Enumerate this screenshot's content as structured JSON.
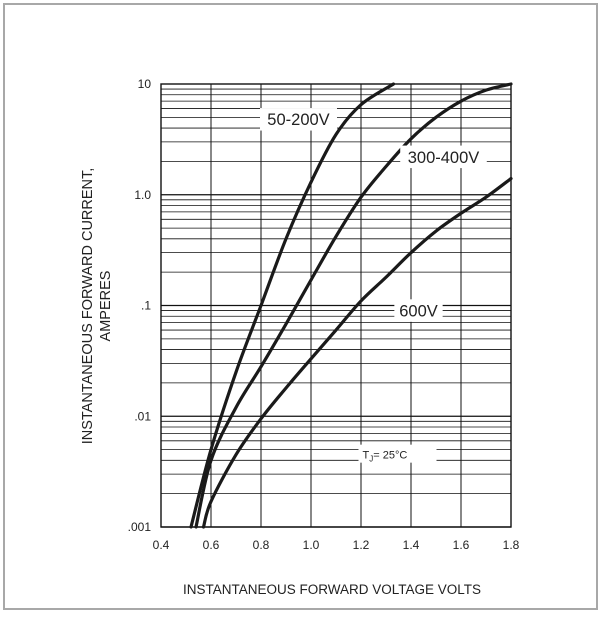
{
  "chart_data": {
    "type": "line",
    "xlabel": "INSTANTANEOUS FORWARD VOLTAGE VOLTS",
    "ylabel_line1": "INSTANTANEOUS FORWARD CURRENT,",
    "ylabel_line2": "AMPERES",
    "x_scale": "linear",
    "y_scale": "log",
    "xlim": [
      0.4,
      1.8
    ],
    "ylim": [
      0.001,
      10
    ],
    "x_ticks": [
      "0.4",
      "0.6",
      "0.8",
      "1.0",
      "1.2",
      "1.4",
      "1.6",
      "1.8"
    ],
    "y_ticks": [
      {
        "value": 0.001,
        "label": ".001"
      },
      {
        "value": 0.01,
        "label": ".01"
      },
      {
        "value": 0.1,
        "label": ".1"
      },
      {
        "value": 1,
        "label": "1.0"
      },
      {
        "value": 10,
        "label": "10"
      }
    ],
    "grid": true,
    "annotation": {
      "text_main": "T",
      "text_sub": "J",
      "text_rest": "= 25°C",
      "x": 1.35,
      "y": 0.0045
    },
    "series": [
      {
        "name": "50-200V",
        "label_at": {
          "x": 0.95,
          "y": 4.8
        },
        "points": [
          [
            0.52,
            0.001
          ],
          [
            0.6,
            0.005
          ],
          [
            0.7,
            0.025
          ],
          [
            0.8,
            0.1
          ],
          [
            0.9,
            0.4
          ],
          [
            1.0,
            1.3
          ],
          [
            1.1,
            3.5
          ],
          [
            1.2,
            6.5
          ],
          [
            1.33,
            10
          ]
        ]
      },
      {
        "name": "300-400V",
        "label_at": {
          "x": 1.53,
          "y": 2.2
        },
        "points": [
          [
            0.54,
            0.001
          ],
          [
            0.6,
            0.004
          ],
          [
            0.7,
            0.012
          ],
          [
            0.8,
            0.028
          ],
          [
            0.9,
            0.068
          ],
          [
            1.0,
            0.17
          ],
          [
            1.1,
            0.42
          ],
          [
            1.2,
            0.95
          ],
          [
            1.3,
            1.8
          ],
          [
            1.4,
            3.2
          ],
          [
            1.5,
            5.0
          ],
          [
            1.6,
            7.0
          ],
          [
            1.7,
            8.8
          ],
          [
            1.8,
            10
          ]
        ]
      },
      {
        "name": "600V",
        "label_at": {
          "x": 1.43,
          "y": 0.09
        },
        "points": [
          [
            0.57,
            0.001
          ],
          [
            0.6,
            0.0017
          ],
          [
            0.7,
            0.0045
          ],
          [
            0.8,
            0.0095
          ],
          [
            0.9,
            0.018
          ],
          [
            1.0,
            0.033
          ],
          [
            1.1,
            0.06
          ],
          [
            1.2,
            0.11
          ],
          [
            1.3,
            0.18
          ],
          [
            1.4,
            0.3
          ],
          [
            1.5,
            0.47
          ],
          [
            1.6,
            0.68
          ],
          [
            1.7,
            0.95
          ],
          [
            1.8,
            1.4
          ]
        ]
      }
    ]
  }
}
